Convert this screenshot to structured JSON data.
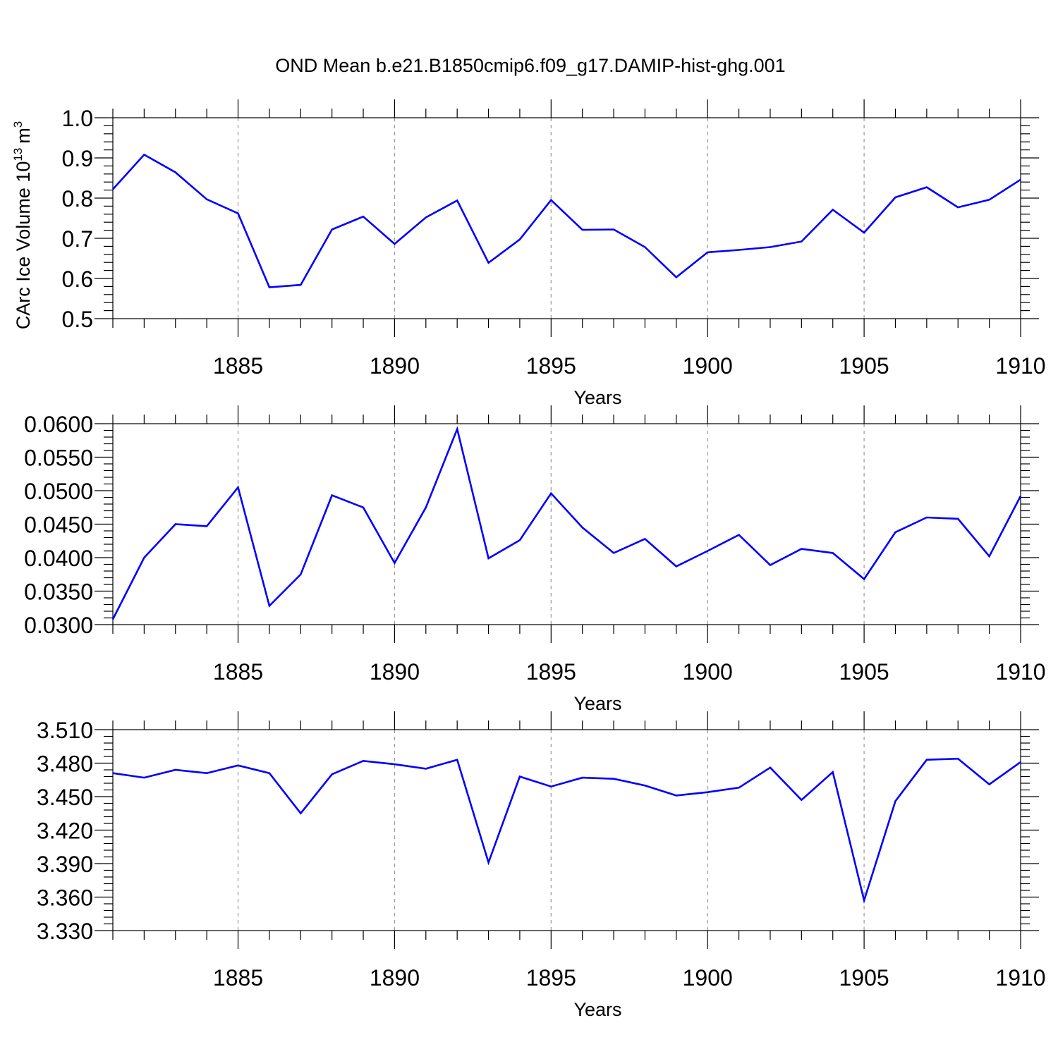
{
  "title": "OND Mean b.e21.B1850cmip6.f09_g17.DAMIP-hist-ghg.001",
  "colors": {
    "series": "#0000ff",
    "axes": "#000000",
    "grid": "#999999"
  },
  "chart_data": [
    {
      "type": "line",
      "ylabel": "CArc Ice Volume 10",
      "ylabel_exp": "13",
      "ylabel_unit": "m",
      "ylabel_unit_exp": "3",
      "xlabel": "Years",
      "xlim": [
        1881,
        1910
      ],
      "ylim": [
        0.5,
        1.0
      ],
      "x_ticks": [
        "1885",
        "1890",
        "1895",
        "1900",
        "1905",
        "1910"
      ],
      "y_ticks": [
        "0.5",
        "0.6",
        "0.7",
        "0.8",
        "0.9",
        "1.0"
      ],
      "grid": "dashed vertical at major ticks",
      "x": [
        1881,
        1882,
        1883,
        1884,
        1885,
        1886,
        1887,
        1888,
        1889,
        1890,
        1891,
        1892,
        1893,
        1894,
        1895,
        1896,
        1897,
        1898,
        1899,
        1900,
        1901,
        1902,
        1903,
        1904,
        1905,
        1906,
        1907,
        1908,
        1909,
        1910
      ],
      "values": [
        0.822,
        0.908,
        0.864,
        0.797,
        0.762,
        0.578,
        0.584,
        0.722,
        0.754,
        0.686,
        0.752,
        0.794,
        0.639,
        0.697,
        0.795,
        0.721,
        0.722,
        0.678,
        0.603,
        0.665,
        0.671,
        0.678,
        0.692,
        0.771,
        0.714,
        0.802,
        0.827,
        0.777,
        0.796,
        0.846
      ]
    },
    {
      "type": "line",
      "xlabel": "Years",
      "xlim": [
        1881,
        1910
      ],
      "ylim": [
        0.03,
        0.06
      ],
      "x_ticks": [
        "1885",
        "1890",
        "1895",
        "1900",
        "1905",
        "1910"
      ],
      "y_ticks": [
        "0.0300",
        "0.0350",
        "0.0400",
        "0.0450",
        "0.0500",
        "0.0550",
        "0.0600"
      ],
      "grid": "dashed vertical at major ticks",
      "x": [
        1881,
        1882,
        1883,
        1884,
        1885,
        1886,
        1887,
        1888,
        1889,
        1890,
        1891,
        1892,
        1893,
        1894,
        1895,
        1896,
        1897,
        1898,
        1899,
        1900,
        1901,
        1902,
        1903,
        1904,
        1905,
        1906,
        1907,
        1908,
        1909,
        1910
      ],
      "values": [
        0.0308,
        0.04,
        0.045,
        0.0447,
        0.0505,
        0.0328,
        0.0375,
        0.0493,
        0.0475,
        0.0392,
        0.0475,
        0.0592,
        0.0399,
        0.0426,
        0.0496,
        0.0445,
        0.0407,
        0.0428,
        0.0387,
        0.041,
        0.0434,
        0.0389,
        0.0413,
        0.0407,
        0.0368,
        0.0438,
        0.046,
        0.0458,
        0.0402,
        0.0492
      ]
    },
    {
      "type": "line",
      "xlabel": "Years",
      "xlim": [
        1881,
        1910
      ],
      "ylim": [
        3.33,
        3.51
      ],
      "x_ticks": [
        "1885",
        "1890",
        "1895",
        "1900",
        "1905",
        "1910"
      ],
      "y_ticks": [
        "3.330",
        "3.360",
        "3.390",
        "3.420",
        "3.450",
        "3.480",
        "3.510"
      ],
      "grid": "dashed vertical at major ticks",
      "x": [
        1881,
        1882,
        1883,
        1884,
        1885,
        1886,
        1887,
        1888,
        1889,
        1890,
        1891,
        1892,
        1893,
        1894,
        1895,
        1896,
        1897,
        1898,
        1899,
        1900,
        1901,
        1902,
        1903,
        1904,
        1905,
        1906,
        1907,
        1908,
        1909,
        1910
      ],
      "values": [
        3.471,
        3.467,
        3.474,
        3.471,
        3.478,
        3.471,
        3.435,
        3.47,
        3.482,
        3.479,
        3.475,
        3.483,
        3.391,
        3.468,
        3.459,
        3.467,
        3.466,
        3.46,
        3.451,
        3.454,
        3.458,
        3.476,
        3.447,
        3.472,
        3.357,
        3.446,
        3.483,
        3.484,
        3.461,
        3.481
      ]
    }
  ]
}
